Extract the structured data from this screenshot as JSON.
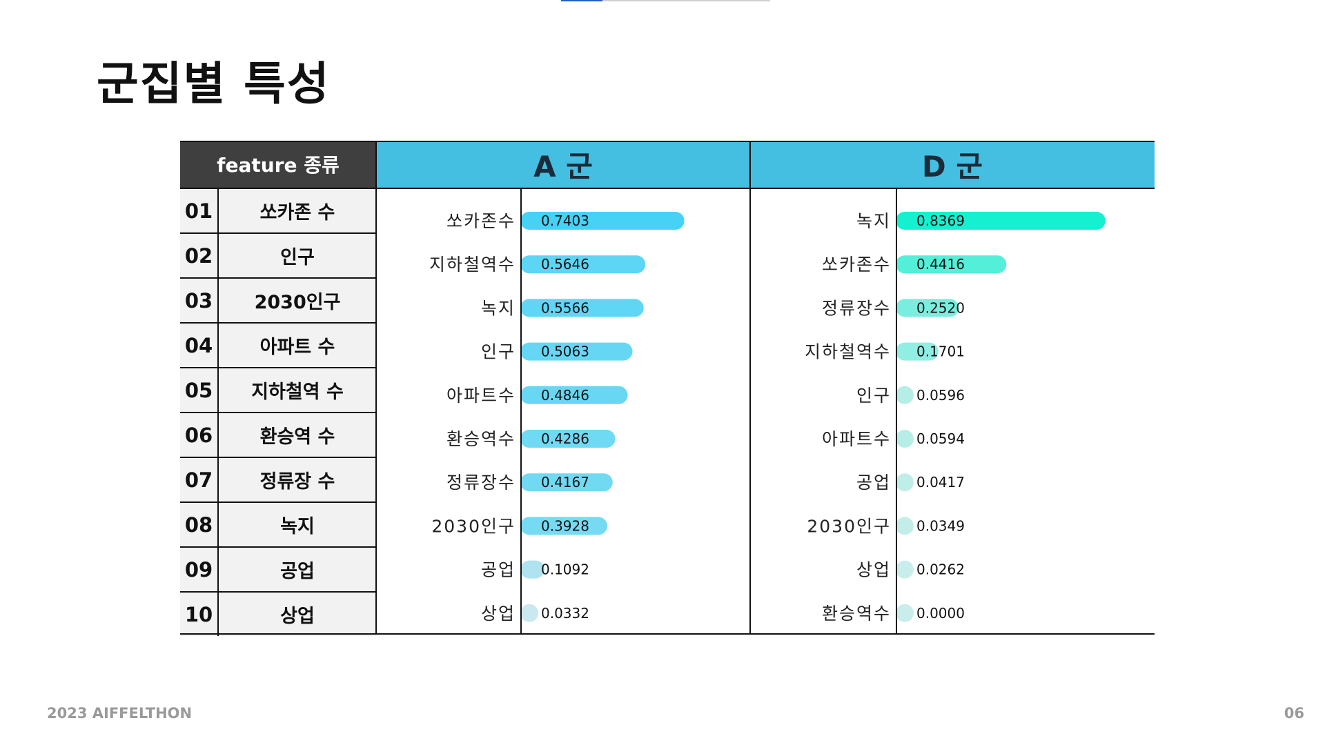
{
  "title": "군집별 특성",
  "table": {
    "feature_header": "feature 종류",
    "group_a_header": "A 군",
    "group_d_header": "D 군",
    "features": [
      {
        "num": "01",
        "name": "쏘카존 수"
      },
      {
        "num": "02",
        "name": "인구"
      },
      {
        "num": "03",
        "name": "2030인구"
      },
      {
        "num": "04",
        "name": "아파트 수"
      },
      {
        "num": "05",
        "name": "지하철역 수"
      },
      {
        "num": "06",
        "name": "환승역 수"
      },
      {
        "num": "07",
        "name": "정류장 수"
      },
      {
        "num": "08",
        "name": "녹지"
      },
      {
        "num": "09",
        "name": "공업"
      },
      {
        "num": "10",
        "name": "상업"
      }
    ]
  },
  "chart_data": [
    {
      "type": "bar",
      "orientation": "horizontal",
      "categories": [
        "쏘카존수",
        "지하철역수",
        "녹지",
        "인구",
        "아파트수",
        "환승역수",
        "정류장수",
        "2030인구",
        "공업",
        "상업"
      ],
      "values": [
        0.7403,
        0.5646,
        0.5566,
        0.5063,
        0.4846,
        0.4286,
        0.4167,
        0.3928,
        0.1092,
        0.0332
      ],
      "data_labels": [
        "0.7403",
        "0.5646",
        "0.5566",
        "0.5063",
        "0.4846",
        "0.4286",
        "0.4167",
        "0.3928",
        "0.1092",
        "0.0332"
      ],
      "xlim": [
        0,
        1
      ],
      "bar_color": "#46d2f5",
      "grid": false,
      "legend": false
    },
    {
      "type": "bar",
      "orientation": "horizontal",
      "categories": [
        "녹지",
        "쏘카존수",
        "정류장수",
        "지하철역수",
        "인구",
        "아파트수",
        "공업",
        "2030인구",
        "상업",
        "환승역수"
      ],
      "values": [
        0.8369,
        0.4416,
        0.252,
        0.1701,
        0.0596,
        0.0594,
        0.0417,
        0.0349,
        0.0262,
        0.0
      ],
      "data_labels": [
        "0.8369",
        "0.4416",
        "0.2520",
        "0.1701",
        "0.0596",
        "0.0594",
        "0.0417",
        "0.0349",
        "0.0262",
        "0.0000"
      ],
      "xlim": [
        0,
        1
      ],
      "bar_color": "#14f0d0",
      "grid": false,
      "legend": false
    }
  ],
  "footer": {
    "left": "2023 AIFFELTHON",
    "page": "06"
  },
  "colors": {
    "header_dark": "#3f3f3f",
    "header_blue": "#44bfe1",
    "row_bg": "#f2f2f2"
  }
}
